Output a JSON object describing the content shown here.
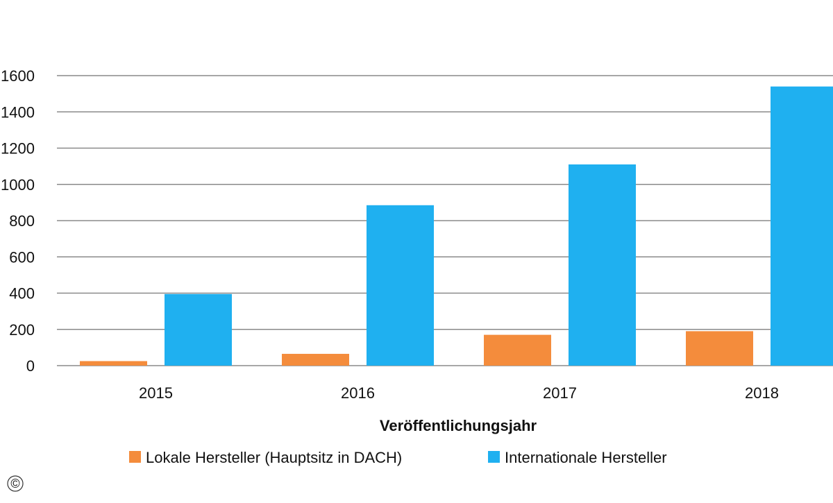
{
  "chart_data": {
    "type": "bar",
    "title": "",
    "xlabel": "Veröffentlichungsjahr",
    "ylabel": "",
    "categories": [
      "2015",
      "2016",
      "2017",
      "2018"
    ],
    "series": [
      {
        "name": "Lokale Hersteller (Hauptsitz in DACH)",
        "color": "#f48c3c",
        "values": [
          25,
          65,
          170,
          190
        ]
      },
      {
        "name": "Internationale Hersteller",
        "color": "#1fb0f0",
        "values": [
          395,
          885,
          1110,
          1540
        ]
      }
    ],
    "ylim": [
      0,
      1600
    ],
    "yticks": [
      "0",
      "200",
      "400",
      "600",
      "800",
      "1000",
      "1200",
      "1400",
      "1600"
    ],
    "grid": true,
    "legend_position": "bottom"
  },
  "copyright_mark": "©"
}
